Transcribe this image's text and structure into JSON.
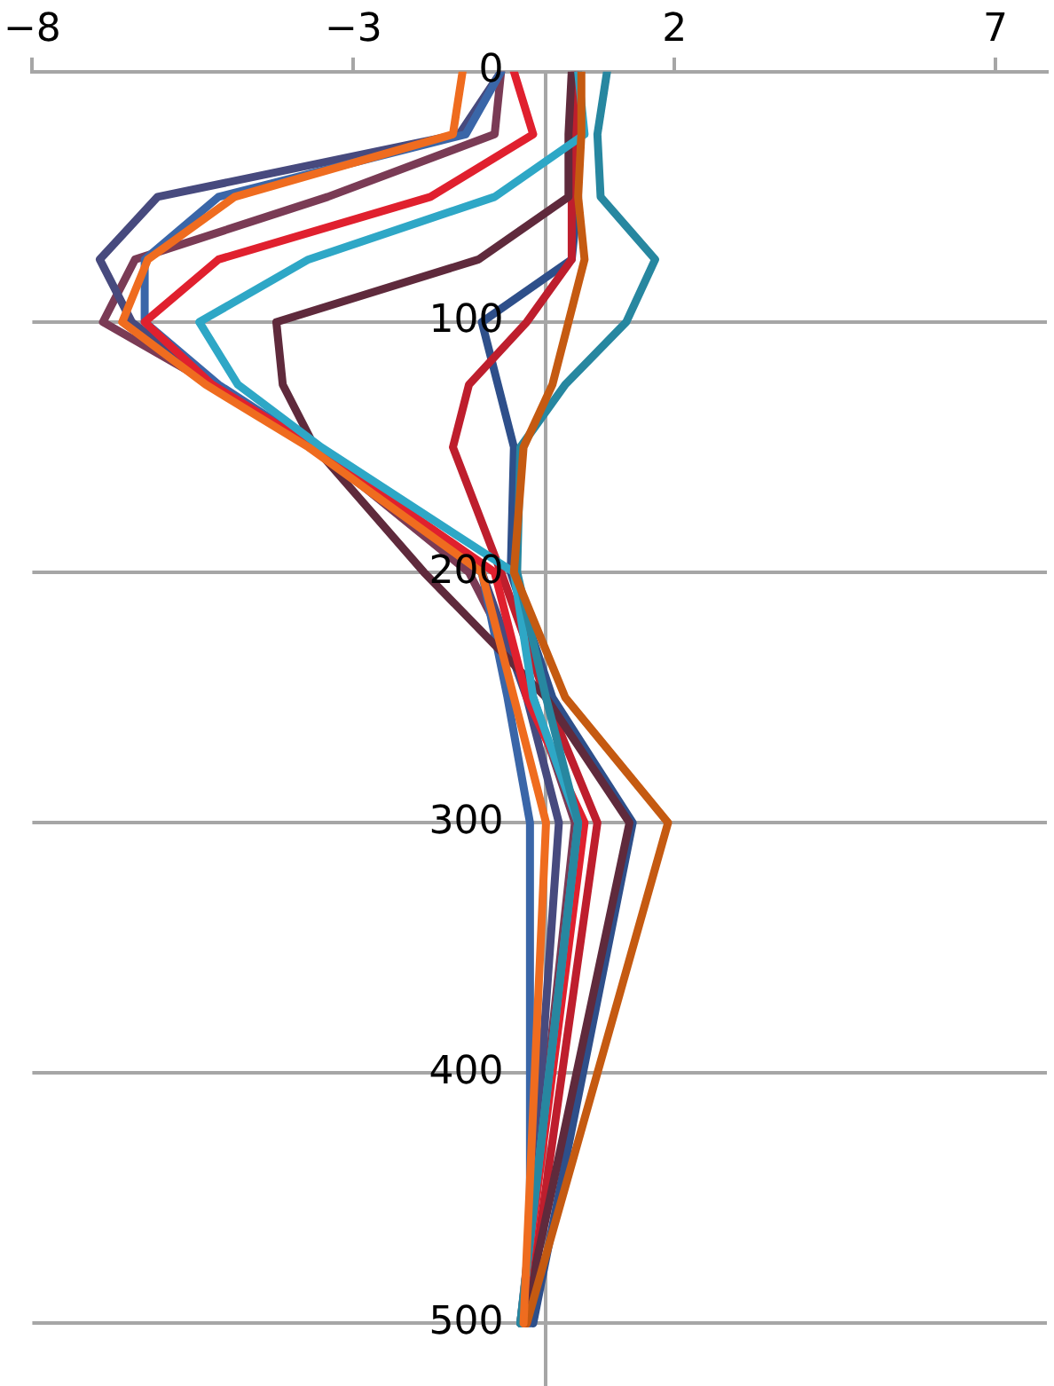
{
  "chart_data": {
    "type": "line",
    "grid": "y",
    "line_style": "solid",
    "marker": "none",
    "xlim": [
      -8,
      7.8
    ],
    "xticks": [
      {
        "value": -8,
        "label": "−8"
      },
      {
        "value": -3,
        "label": "−3"
      },
      2,
      7
    ],
    "ylim": [
      525,
      0
    ],
    "yticks": [
      0,
      100,
      200,
      300,
      400,
      500
    ],
    "series": [
      {
        "color": "#ef6c1f",
        "x": [
          -1.3,
          -1.45,
          -4.85,
          -6.2,
          -6.6,
          -5.3,
          -3.7,
          -1.0,
          -0.5,
          0.0,
          -0.35
        ],
        "values": [
          0,
          25,
          50,
          75,
          100,
          125,
          150,
          200,
          250,
          300,
          500
        ]
      },
      {
        "color": "#c55a11",
        "x": [
          0.55,
          0.55,
          0.5,
          0.6,
          0.35,
          0.1,
          -0.35,
          -0.5,
          0.3,
          1.9,
          -0.3
        ],
        "values": [
          0,
          25,
          50,
          75,
          100,
          125,
          150,
          200,
          250,
          300,
          500
        ]
      },
      {
        "color": "#2787a0",
        "x": [
          0.95,
          0.8,
          0.85,
          1.7,
          1.25,
          0.3,
          -0.4,
          -0.45,
          0.0,
          0.5,
          -0.4
        ],
        "values": [
          0,
          25,
          50,
          75,
          100,
          125,
          150,
          200,
          250,
          300,
          500
        ]
      },
      {
        "color": "#2ea7c6",
        "x": [
          0.5,
          0.6,
          -0.8,
          -3.7,
          -5.4,
          -4.8,
          -3.5,
          -0.5,
          -0.2,
          0.5,
          -0.4
        ],
        "values": [
          0,
          25,
          50,
          75,
          100,
          125,
          150,
          200,
          250,
          300,
          500
        ]
      },
      {
        "color": "#e0202e",
        "x": [
          -0.5,
          -0.2,
          -1.8,
          -5.1,
          -6.25,
          -5.2,
          -3.6,
          -0.8,
          -0.3,
          0.6,
          -0.4
        ],
        "values": [
          0,
          25,
          50,
          75,
          100,
          125,
          150,
          200,
          250,
          300,
          500
        ]
      },
      {
        "color": "#5f2a3c",
        "x": [
          0.4,
          0.35,
          0.35,
          -1.05,
          -4.2,
          -4.1,
          -3.6,
          -1.9,
          0.0,
          1.3,
          -0.35
        ],
        "values": [
          0,
          25,
          50,
          75,
          100,
          125,
          150,
          200,
          250,
          300,
          500
        ]
      },
      {
        "color": "#be1e2d",
        "x": [
          0.45,
          0.45,
          0.4,
          0.4,
          -0.3,
          -1.2,
          -1.45,
          -0.7,
          0.0,
          0.8,
          -0.3
        ],
        "values": [
          0,
          25,
          50,
          75,
          100,
          125,
          150,
          200,
          250,
          300,
          500
        ]
      },
      {
        "color": "#2e4f8a",
        "x": [
          0.5,
          0.45,
          0.5,
          0.4,
          -1.0,
          -0.75,
          -0.5,
          -0.55,
          0.1,
          1.35,
          -0.2
        ],
        "values": [
          0,
          25,
          50,
          75,
          100,
          125,
          150,
          200,
          250,
          300,
          500
        ]
      },
      {
        "color": "#3a66a8",
        "x": [
          -0.7,
          -1.25,
          -5.1,
          -6.25,
          -6.25,
          -5.1,
          -3.6,
          -1.0,
          -0.6,
          -0.25,
          -0.25
        ],
        "values": [
          0,
          25,
          50,
          75,
          100,
          125,
          150,
          200,
          250,
          300,
          500
        ]
      },
      {
        "color": "#474a7e",
        "x": [
          -0.7,
          -1.35,
          -6.05,
          -6.95,
          -6.45,
          -5.2,
          -3.6,
          -1.0,
          -0.3,
          0.2,
          -0.35
        ],
        "values": [
          0,
          25,
          50,
          75,
          100,
          125,
          150,
          200,
          250,
          300,
          500
        ]
      },
      {
        "color": "#7a3b55",
        "x": [
          -0.7,
          -0.8,
          -3.4,
          -6.4,
          -6.9,
          -5.2,
          -3.6,
          -1.2,
          -0.2,
          0.45,
          -0.4
        ],
        "values": [
          0,
          25,
          50,
          75,
          100,
          125,
          150,
          200,
          250,
          300,
          500
        ]
      }
    ]
  }
}
